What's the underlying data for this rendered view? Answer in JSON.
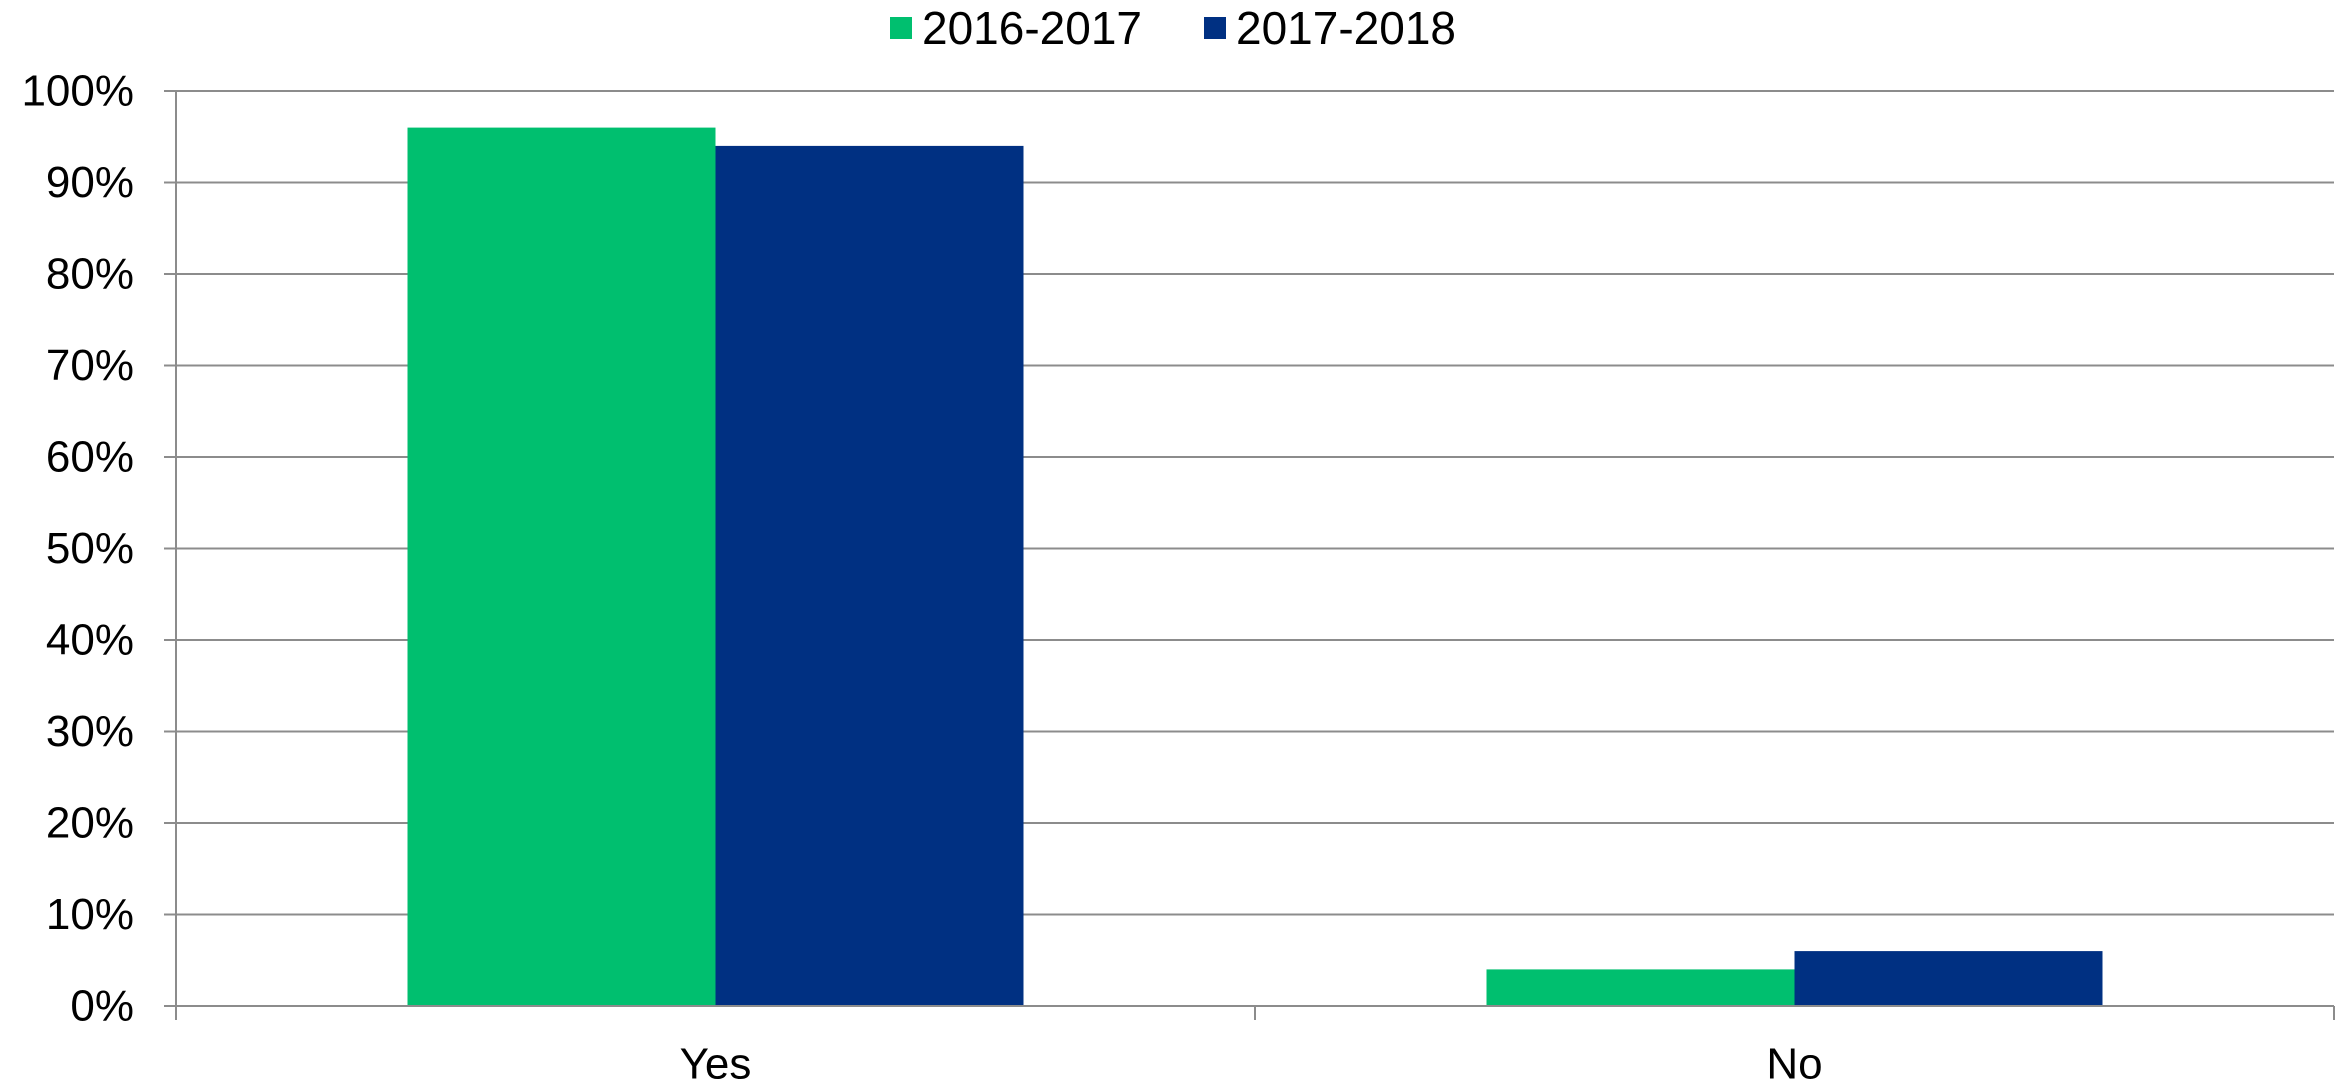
{
  "chart_data": {
    "type": "bar",
    "categories": [
      "Yes",
      "No"
    ],
    "series": [
      {
        "name": "2016-2017",
        "values": [
          96,
          4
        ],
        "color": "#00BF6F"
      },
      {
        "name": "2017-2018",
        "values": [
          94,
          6
        ],
        "color": "#003082"
      }
    ],
    "ylim": [
      0,
      100
    ],
    "yticks": [
      "0%",
      "10%",
      "20%",
      "30%",
      "40%",
      "50%",
      "60%",
      "70%",
      "80%",
      "90%",
      "100%"
    ],
    "grid": true,
    "legend_position": "top"
  }
}
